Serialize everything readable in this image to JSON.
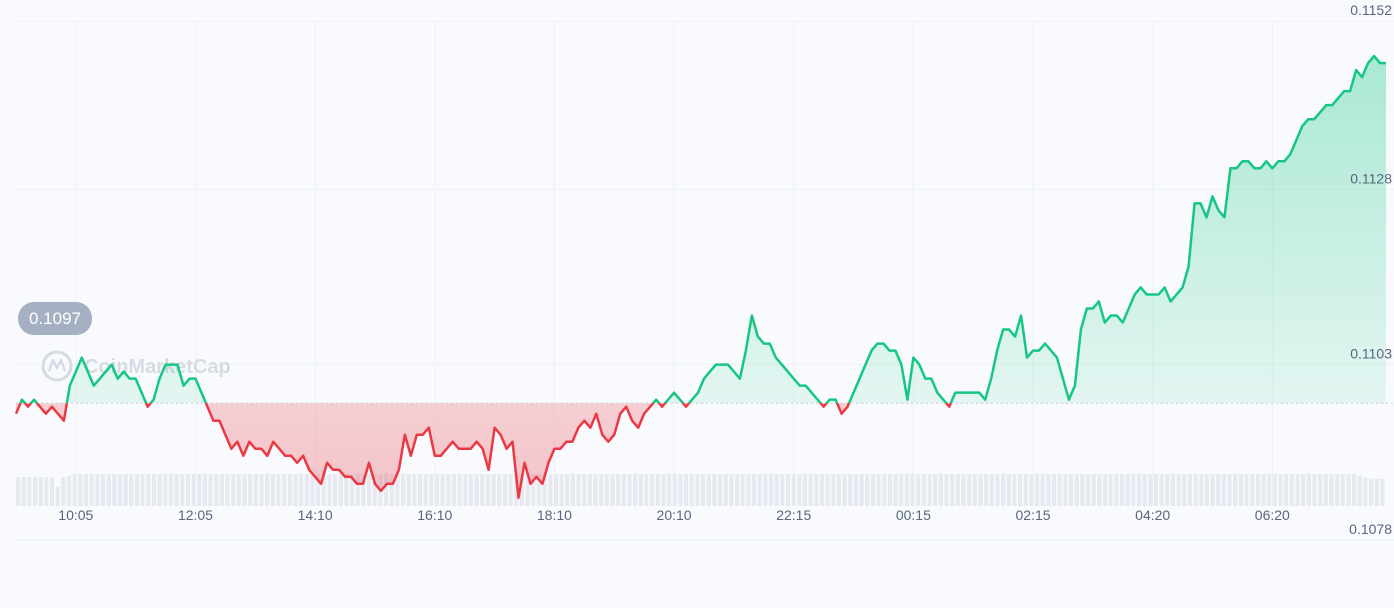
{
  "chart_data": {
    "type": "line",
    "watermark": "CoinMarketCap",
    "current_value": 0.1097,
    "current_value_label": "0.1097",
    "reference_value": 0.10975,
    "ylim": [
      0.1069,
      0.1155
    ],
    "y_ticks": [
      {
        "value": 0.1152,
        "label": "0.1152"
      },
      {
        "value": 0.1128,
        "label": "0.1128"
      },
      {
        "value": 0.1103,
        "label": "0.1103"
      },
      {
        "value": 0.1078,
        "label": "0.1078"
      }
    ],
    "x_ticks": [
      "10:05",
      "12:05",
      "14:10",
      "16:10",
      "18:10",
      "20:10",
      "22:15",
      "00:15",
      "02:15",
      "04:20",
      "06:20"
    ],
    "x_tick_indices": [
      10,
      30,
      50,
      70,
      90,
      110,
      130,
      150,
      170,
      190,
      210
    ],
    "colors": {
      "up": "#16c784",
      "down": "#ea3943",
      "grid": "#eff2f5",
      "reference": "#c8cdd6",
      "volume": "#e6e9f0",
      "label_bg": "#a6b0c3"
    },
    "series": [
      {
        "values": [
          0.1096,
          0.1098,
          0.1097,
          0.1098,
          0.1097,
          0.1096,
          0.1097,
          0.1096,
          0.1095,
          0.11,
          0.1102,
          0.1104,
          0.1102,
          0.11,
          0.1101,
          0.1102,
          0.1103,
          0.1101,
          0.1102,
          0.1101,
          0.1101,
          0.1099,
          0.1097,
          0.1098,
          0.1101,
          0.1103,
          0.1103,
          0.1103,
          0.11,
          0.1101,
          0.1101,
          0.1099,
          0.1097,
          0.1095,
          0.1095,
          0.1093,
          0.1091,
          0.1092,
          0.109,
          0.1092,
          0.1091,
          0.1091,
          0.109,
          0.1092,
          0.1091,
          0.109,
          0.109,
          0.1089,
          0.109,
          0.1088,
          0.1087,
          0.1086,
          0.1089,
          0.1088,
          0.1088,
          0.1087,
          0.1087,
          0.1086,
          0.1086,
          0.1089,
          0.1086,
          0.1085,
          0.1086,
          0.1086,
          0.1088,
          0.1093,
          0.109,
          0.1093,
          0.1093,
          0.1094,
          0.109,
          0.109,
          0.1091,
          0.1092,
          0.1091,
          0.1091,
          0.1091,
          0.1092,
          0.1091,
          0.1088,
          0.1094,
          0.1093,
          0.1091,
          0.1092,
          0.1084,
          0.1089,
          0.1086,
          0.1087,
          0.1086,
          0.1089,
          0.1091,
          0.1091,
          0.1092,
          0.1092,
          0.1094,
          0.1095,
          0.1094,
          0.1096,
          0.1093,
          0.1092,
          0.1093,
          0.1096,
          0.1097,
          0.1095,
          0.1094,
          0.1096,
          0.1097,
          0.1098,
          0.1097,
          0.1098,
          0.1099,
          0.1098,
          0.1097,
          0.1098,
          0.1099,
          0.1101,
          0.1102,
          0.1103,
          0.1103,
          0.1103,
          0.1102,
          0.1101,
          0.1105,
          0.111,
          0.1107,
          0.1106,
          0.1106,
          0.1104,
          0.1103,
          0.1102,
          0.1101,
          0.11,
          0.11,
          0.1099,
          0.1098,
          0.1097,
          0.1098,
          0.1098,
          0.1096,
          0.1097,
          0.1099,
          0.1101,
          0.1103,
          0.1105,
          0.1106,
          0.1106,
          0.1105,
          0.1105,
          0.1103,
          0.1098,
          0.1104,
          0.1103,
          0.1101,
          0.1101,
          0.1099,
          0.1098,
          0.1097,
          0.1099,
          0.1099,
          0.1099,
          0.1099,
          0.1099,
          0.1098,
          0.1101,
          0.1105,
          0.1108,
          0.1108,
          0.1107,
          0.111,
          0.1104,
          0.1105,
          0.1105,
          0.1106,
          0.1105,
          0.1104,
          0.1101,
          0.1098,
          0.11,
          0.1108,
          0.1111,
          0.1111,
          0.1112,
          0.1109,
          0.111,
          0.111,
          0.1109,
          0.1111,
          0.1113,
          0.1114,
          0.1113,
          0.1113,
          0.1113,
          0.1114,
          0.1112,
          0.1113,
          0.1114,
          0.1117,
          0.1126,
          0.1126,
          0.1124,
          0.1127,
          0.1125,
          0.1124,
          0.1131,
          0.1131,
          0.1132,
          0.1132,
          0.1131,
          0.1131,
          0.1132,
          0.1131,
          0.1132,
          0.1132,
          0.1133,
          0.1135,
          0.1137,
          0.1138,
          0.1138,
          0.1139,
          0.114,
          0.114,
          0.1141,
          0.1142,
          0.1142,
          0.1145,
          0.1144,
          0.1146,
          0.1147,
          0.1146,
          0.1146
        ]
      }
    ],
    "volume": [
      0.9,
      0.9,
      0.9,
      0.9,
      0.9,
      0.9,
      0.9,
      0.6,
      0.9,
      0.95,
      1.0,
      1.0,
      1.0,
      1.0,
      1.0,
      1.0,
      1.0,
      1.0,
      1.0,
      1.0,
      1.0,
      1.0,
      1.0,
      1.0,
      1.0,
      1.0,
      1.0,
      1.0,
      1.0,
      1.0,
      1.0,
      1.0,
      1.0,
      1.0,
      1.0,
      1.0,
      1.0,
      1.0,
      1.0,
      1.0,
      1.0,
      1.0,
      1.0,
      1.0,
      1.0,
      1.0,
      1.0,
      1.0,
      1.0,
      1.0,
      1.0,
      1.0,
      1.0,
      1.0,
      1.0,
      1.0,
      1.0,
      1.0,
      1.0,
      1.0,
      1.0,
      1.0,
      1.0,
      1.0,
      1.0,
      1.0,
      1.0,
      1.0,
      1.0,
      1.0,
      1.0,
      1.0,
      1.0,
      1.0,
      1.0,
      1.0,
      1.0,
      1.0,
      1.0,
      1.0,
      1.0,
      1.0,
      1.0,
      1.0,
      1.0,
      1.0,
      1.0,
      1.0,
      1.0,
      1.0,
      1.0,
      1.0,
      1.0,
      1.0,
      1.0,
      1.0,
      1.0,
      1.0,
      1.0,
      1.0,
      1.0,
      1.0,
      1.0,
      1.0,
      1.0,
      1.0,
      1.0,
      1.0,
      1.0,
      1.0,
      1.0,
      1.0,
      1.0,
      1.0,
      1.0,
      1.0,
      1.0,
      1.0,
      1.0,
      1.0,
      1.0,
      1.0,
      1.0,
      1.0,
      1.0,
      1.0,
      1.0,
      1.0,
      1.0,
      1.0,
      1.0,
      1.0,
      1.0,
      1.0,
      1.0,
      1.0,
      1.0,
      1.0,
      1.0,
      1.0,
      1.0,
      1.0,
      1.0,
      1.0,
      1.0,
      1.0,
      1.0,
      1.0,
      1.0,
      1.0,
      1.0,
      1.0,
      1.0,
      1.0,
      1.0,
      1.0,
      1.0,
      1.0,
      1.0,
      1.0,
      1.0,
      1.0,
      1.0,
      1.0,
      1.0,
      1.0,
      1.0,
      1.0,
      1.0,
      1.0,
      1.0,
      1.0,
      1.0,
      1.0,
      1.0,
      1.0,
      1.0,
      1.0,
      1.0,
      1.0,
      1.0,
      1.0,
      1.0,
      1.0,
      1.0,
      1.0,
      1.0,
      1.0,
      1.0,
      1.0,
      1.0,
      1.0,
      1.0,
      1.0,
      1.0,
      1.0,
      1.0,
      1.0,
      1.0,
      1.0,
      1.0,
      1.0,
      1.0,
      1.0,
      1.0,
      1.0,
      1.0,
      1.0,
      1.0,
      1.0,
      1.0,
      1.0,
      1.0,
      1.0,
      1.0,
      1.0,
      1.0,
      1.0,
      1.0,
      1.0,
      1.0,
      1.0,
      1.0,
      1.0,
      1.0,
      1.0,
      1.0,
      1.0,
      1.0,
      1.0,
      1.0,
      1.0,
      1.0,
      1.0,
      1.0,
      1.0,
      1.0,
      0.95,
      0.9,
      0.85,
      0.85,
      0.85
    ]
  }
}
